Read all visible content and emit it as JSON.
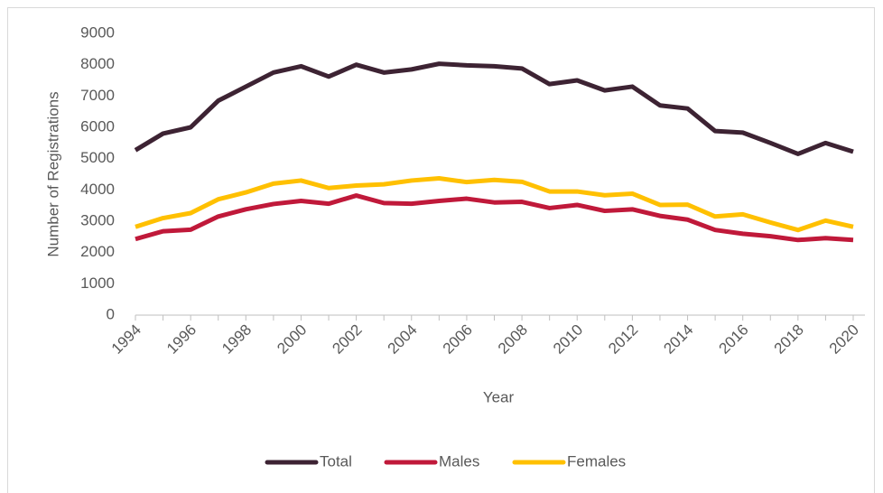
{
  "chart_data": {
    "type": "line",
    "x_label": "Year",
    "y_label": "Number of Registrations",
    "categories": [
      "1994",
      null,
      "1996",
      null,
      "1998",
      null,
      "2000",
      null,
      "2002",
      null,
      "2004",
      null,
      "2006",
      null,
      "2008",
      null,
      "2010",
      null,
      "2012",
      null,
      "2014",
      null,
      "2016",
      null,
      "2018",
      null,
      "2020"
    ],
    "series": [
      {
        "name": "Total",
        "color": "#3d2333",
        "values": [
          5270,
          5800,
          6000,
          6850,
          7300,
          7750,
          7950,
          7620,
          8000,
          7750,
          7850,
          8030,
          7980,
          7950,
          7880,
          7380,
          7500,
          7180,
          7300,
          6700,
          6600,
          5880,
          5830,
          5500,
          5150,
          5500,
          5220
        ]
      },
      {
        "name": "Males",
        "color": "#c0193a",
        "values": [
          2430,
          2680,
          2730,
          3150,
          3380,
          3550,
          3650,
          3560,
          3820,
          3580,
          3560,
          3650,
          3720,
          3600,
          3620,
          3420,
          3520,
          3330,
          3380,
          3170,
          3050,
          2720,
          2600,
          2520,
          2400,
          2460,
          2400
        ]
      },
      {
        "name": "Females",
        "color": "#ffc000",
        "values": [
          2820,
          3100,
          3260,
          3700,
          3920,
          4200,
          4300,
          4060,
          4140,
          4180,
          4300,
          4370,
          4250,
          4320,
          4260,
          3950,
          3950,
          3830,
          3880,
          3520,
          3530,
          3150,
          3220,
          2960,
          2720,
          3020,
          2820
        ]
      }
    ],
    "ylim": [
      0,
      9000
    ],
    "yticks": [
      0,
      1000,
      2000,
      3000,
      4000,
      5000,
      6000,
      7000,
      8000,
      9000
    ],
    "grid": false,
    "legend": "bottom"
  }
}
